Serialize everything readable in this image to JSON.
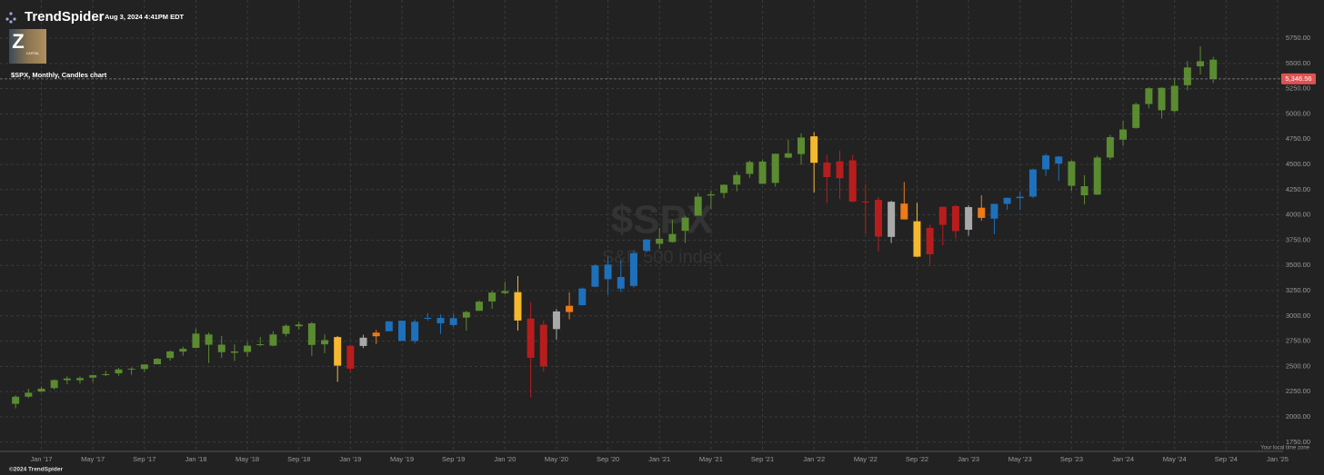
{
  "header": {
    "brand": "TrendSpider",
    "timestamp": "Aug 3, 2024 4:41PM EDT",
    "logo_letter": "Z",
    "logo_text": "CAPITAL"
  },
  "footer": {
    "copyright": "©2024 TrendSpider",
    "timezone_note": "Your local time zone"
  },
  "chart_data": {
    "type": "candlestick",
    "title": "$SPX, Monthly, Candles chart",
    "watermark": "$SPX",
    "watermark_subtitle": "S&P 500 index",
    "x": [
      "2016-11",
      "2016-12",
      "2017-01",
      "2017-02",
      "2017-03",
      "2017-04",
      "2017-05",
      "2017-06",
      "2017-07",
      "2017-08",
      "2017-09",
      "2017-10",
      "2017-11",
      "2017-12",
      "2018-01",
      "2018-02",
      "2018-03",
      "2018-04",
      "2018-05",
      "2018-06",
      "2018-07",
      "2018-08",
      "2018-09",
      "2018-10",
      "2018-11",
      "2018-12",
      "2019-01",
      "2019-02",
      "2019-03",
      "2019-04",
      "2019-05",
      "2019-06",
      "2019-07",
      "2019-08",
      "2019-09",
      "2019-10",
      "2019-11",
      "2019-12",
      "2020-01",
      "2020-02",
      "2020-03",
      "2020-04",
      "2020-05",
      "2020-06",
      "2020-07",
      "2020-08",
      "2020-09",
      "2020-10",
      "2020-11",
      "2020-12",
      "2021-01",
      "2021-02",
      "2021-03",
      "2021-04",
      "2021-05",
      "2021-06",
      "2021-07",
      "2021-08",
      "2021-09",
      "2021-10",
      "2021-11",
      "2021-12",
      "2022-01",
      "2022-02",
      "2022-03",
      "2022-04",
      "2022-05",
      "2022-06",
      "2022-07",
      "2022-08",
      "2022-09",
      "2022-10",
      "2022-11",
      "2022-12",
      "2023-01",
      "2023-02",
      "2023-03",
      "2023-04",
      "2023-05",
      "2023-06",
      "2023-07",
      "2023-08",
      "2023-09",
      "2023-10",
      "2023-11",
      "2023-12",
      "2024-01",
      "2024-02",
      "2024-03",
      "2024-04",
      "2024-05",
      "2024-06",
      "2024-07",
      "2024-08"
    ],
    "open": [
      2129,
      2200,
      2251,
      2285,
      2380,
      2363,
      2389,
      2415,
      2431,
      2477,
      2474,
      2521,
      2583,
      2646,
      2683,
      2816,
      2715,
      2634,
      2643,
      2719,
      2705,
      2822,
      2897,
      2926,
      2718,
      2790,
      2477,
      2702,
      2798,
      2848,
      2952,
      2751,
      2971,
      2980,
      2909,
      2983,
      3050,
      3143,
      3245,
      3235,
      2974,
      2499,
      2869,
      3038,
      3106,
      3289,
      3508,
      3385,
      3296,
      3645,
      3764,
      3731,
      3842,
      3992,
      4192,
      4217,
      4300,
      4406,
      4528,
      4317,
      4610,
      4602,
      4778,
      4519,
      4363,
      4540,
      4130,
      4149,
      3782,
      4112,
      3937,
      3610,
      3901,
      4087,
      3853,
      4071,
      3963,
      4109,
      4166,
      4181,
      4451,
      4578,
      4530,
      4284,
      4201,
      4568,
      4745,
      4861,
      5098,
      5258,
      5029,
      5284,
      5471,
      5537
    ],
    "high": [
      2214,
      2278,
      2301,
      2371,
      2401,
      2399,
      2418,
      2454,
      2484,
      2491,
      2519,
      2582,
      2657,
      2695,
      2873,
      2836,
      2801,
      2718,
      2743,
      2791,
      2849,
      2917,
      2941,
      2940,
      2816,
      2800,
      2708,
      2813,
      2860,
      2949,
      2954,
      2964,
      3028,
      3014,
      3022,
      3050,
      3154,
      3248,
      3338,
      3394,
      3137,
      2954,
      3068,
      3233,
      3280,
      3514,
      3588,
      3550,
      3646,
      3760,
      3870,
      3950,
      3994,
      4218,
      4238,
      4302,
      4430,
      4538,
      4546,
      4608,
      4744,
      4808,
      4819,
      4595,
      4637,
      4593,
      4307,
      4177,
      4140,
      4325,
      4119,
      3905,
      4080,
      4101,
      4095,
      4195,
      4110,
      4170,
      4231,
      4458,
      4607,
      4584,
      4541,
      4393,
      4587,
      4793,
      4932,
      5111,
      5265,
      5264,
      5342,
      5523,
      5670,
      5566
    ],
    "low": [
      2084,
      2187,
      2245,
      2272,
      2322,
      2329,
      2344,
      2405,
      2407,
      2417,
      2446,
      2520,
      2557,
      2605,
      2682,
      2533,
      2585,
      2553,
      2595,
      2699,
      2699,
      2796,
      2864,
      2604,
      2631,
      2347,
      2444,
      2681,
      2722,
      2848,
      2750,
      2728,
      2952,
      2822,
      2891,
      2855,
      3050,
      3071,
      3214,
      2855,
      2192,
      2447,
      2766,
      2966,
      3101,
      3284,
      3209,
      3234,
      3280,
      3633,
      3662,
      3725,
      3723,
      3992,
      4056,
      4165,
      4233,
      4367,
      4306,
      4279,
      4560,
      4495,
      4222,
      4115,
      4157,
      4125,
      3811,
      3637,
      3721,
      3955,
      3584,
      3492,
      3699,
      3764,
      3794,
      3943,
      3809,
      4049,
      4048,
      4167,
      4385,
      4336,
      4238,
      4104,
      4197,
      4546,
      4683,
      4853,
      5056,
      4954,
      5011,
      5234,
      5391,
      5306
    ],
    "close": [
      2199,
      2239,
      2279,
      2364,
      2363,
      2384,
      2412,
      2423,
      2470,
      2472,
      2519,
      2575,
      2648,
      2674,
      2824,
      2714,
      2641,
      2648,
      2705,
      2718,
      2816,
      2902,
      2914,
      2712,
      2760,
      2507,
      2704,
      2784,
      2834,
      2946,
      2752,
      2942,
      2980,
      2926,
      2977,
      3038,
      3141,
      3231,
      3226,
      2954,
      2585,
      2912,
      3044,
      3100,
      3271,
      3500,
      3363,
      3270,
      3622,
      3756,
      3714,
      3811,
      3973,
      4181,
      4204,
      4298,
      4395,
      4523,
      4308,
      4605,
      4567,
      4766,
      4516,
      4374,
      4530,
      4132,
      4132,
      3785,
      4130,
      3955,
      3586,
      3872,
      4080,
      3840,
      4077,
      3970,
      4109,
      4169,
      4180,
      4450,
      4589,
      4508,
      4288,
      4194,
      4568,
      4770,
      4846,
      5096,
      5254,
      5036,
      5278,
      5460,
      5522,
      5347
    ],
    "colors": [
      "#5a8b30",
      "#5a8b30",
      "#5a8b30",
      "#5a8b30",
      "#5a8b30",
      "#5a8b30",
      "#5a8b30",
      "#5a8b30",
      "#5a8b30",
      "#5a8b30",
      "#5a8b30",
      "#5a8b30",
      "#5a8b30",
      "#5a8b30",
      "#5a8b30",
      "#5a8b30",
      "#5a8b30",
      "#5a8b30",
      "#5a8b30",
      "#5a8b30",
      "#5a8b30",
      "#5a8b30",
      "#5a8b30",
      "#5a8b30",
      "#5a8b30",
      "#f5b82e",
      "#b81d1d",
      "#a9a9a9",
      "#ee7a18",
      "#1e70bb",
      "#1e70bb",
      "#1e70bb",
      "#1e70bb",
      "#1e70bb",
      "#1e70bb",
      "#5a8b30",
      "#5a8b30",
      "#5a8b30",
      "#5a8b30",
      "#f5b82e",
      "#b81d1d",
      "#b81d1d",
      "#a9a9a9",
      "#ee7a18",
      "#1e70bb",
      "#1e70bb",
      "#1e70bb",
      "#1e70bb",
      "#1e70bb",
      "#1e70bb",
      "#5a8b30",
      "#5a8b30",
      "#5a8b30",
      "#5a8b30",
      "#5a8b30",
      "#5a8b30",
      "#5a8b30",
      "#5a8b30",
      "#5a8b30",
      "#5a8b30",
      "#5a8b30",
      "#5a8b30",
      "#f5b82e",
      "#b81d1d",
      "#b81d1d",
      "#b81d1d",
      "#b81d1d",
      "#b81d1d",
      "#a9a9a9",
      "#ee7a18",
      "#f5b82e",
      "#b81d1d",
      "#b81d1d",
      "#b81d1d",
      "#a9a9a9",
      "#ee7a18",
      "#1e70bb",
      "#1e70bb",
      "#1e70bb",
      "#1e70bb",
      "#1e70bb",
      "#1e70bb",
      "#5a8b30",
      "#5a8b30",
      "#5a8b30",
      "#5a8b30",
      "#5a8b30",
      "#5a8b30",
      "#5a8b30",
      "#5a8b30",
      "#5a8b30",
      "#5a8b30",
      "#5a8b30",
      "#5a8b30"
    ],
    "last_price": {
      "value": 5346.56,
      "label": "5,346.56"
    },
    "last_price_color": "#e05252",
    "xlim": [
      "2016-10",
      "2025-01"
    ],
    "xticks": [
      {
        "value": "2017-01",
        "label": "Jan '17"
      },
      {
        "value": "2017-05",
        "label": "May '17"
      },
      {
        "value": "2017-09",
        "label": "Sep '17"
      },
      {
        "value": "2018-01",
        "label": "Jan '18"
      },
      {
        "value": "2018-05",
        "label": "May '18"
      },
      {
        "value": "2018-09",
        "label": "Sep '18"
      },
      {
        "value": "2019-01",
        "label": "Jan '19"
      },
      {
        "value": "2019-05",
        "label": "May '19"
      },
      {
        "value": "2019-09",
        "label": "Sep '19"
      },
      {
        "value": "2020-01",
        "label": "Jan '20"
      },
      {
        "value": "2020-05",
        "label": "May '20"
      },
      {
        "value": "2020-09",
        "label": "Sep '20"
      },
      {
        "value": "2021-01",
        "label": "Jan '21"
      },
      {
        "value": "2021-05",
        "label": "May '21"
      },
      {
        "value": "2021-09",
        "label": "Sep '21"
      },
      {
        "value": "2022-01",
        "label": "Jan '22"
      },
      {
        "value": "2022-05",
        "label": "May '22"
      },
      {
        "value": "2022-09",
        "label": "Sep '22"
      },
      {
        "value": "2023-01",
        "label": "Jan '23"
      },
      {
        "value": "2023-05",
        "label": "May '23"
      },
      {
        "value": "2023-09",
        "label": "Sep '23"
      },
      {
        "value": "2024-01",
        "label": "Jan '24"
      },
      {
        "value": "2024-05",
        "label": "May '24"
      },
      {
        "value": "2024-09",
        "label": "Sep '24"
      },
      {
        "value": "2025-01",
        "label": "Jan '25"
      }
    ],
    "ylim": [
      1658,
      6128
    ],
    "yticks": [
      {
        "value": 1750,
        "label": "1750.00"
      },
      {
        "value": 2000,
        "label": "2000.00"
      },
      {
        "value": 2250,
        "label": "2250.00"
      },
      {
        "value": 2500,
        "label": "2500.00"
      },
      {
        "value": 2750,
        "label": "2750.00"
      },
      {
        "value": 3000,
        "label": "3000.00"
      },
      {
        "value": 3250,
        "label": "3250.00"
      },
      {
        "value": 3500,
        "label": "3500.00"
      },
      {
        "value": 3750,
        "label": "3750.00"
      },
      {
        "value": 4000,
        "label": "4000.00"
      },
      {
        "value": 4250,
        "label": "4250.00"
      },
      {
        "value": 4500,
        "label": "4500.00"
      },
      {
        "value": 4750,
        "label": "4750.00"
      },
      {
        "value": 5000,
        "label": "5000.00"
      },
      {
        "value": 5250,
        "label": "5250.00"
      },
      {
        "value": 5500,
        "label": "5500.00"
      },
      {
        "value": 5750,
        "label": "5750.00"
      }
    ],
    "grid": true
  }
}
